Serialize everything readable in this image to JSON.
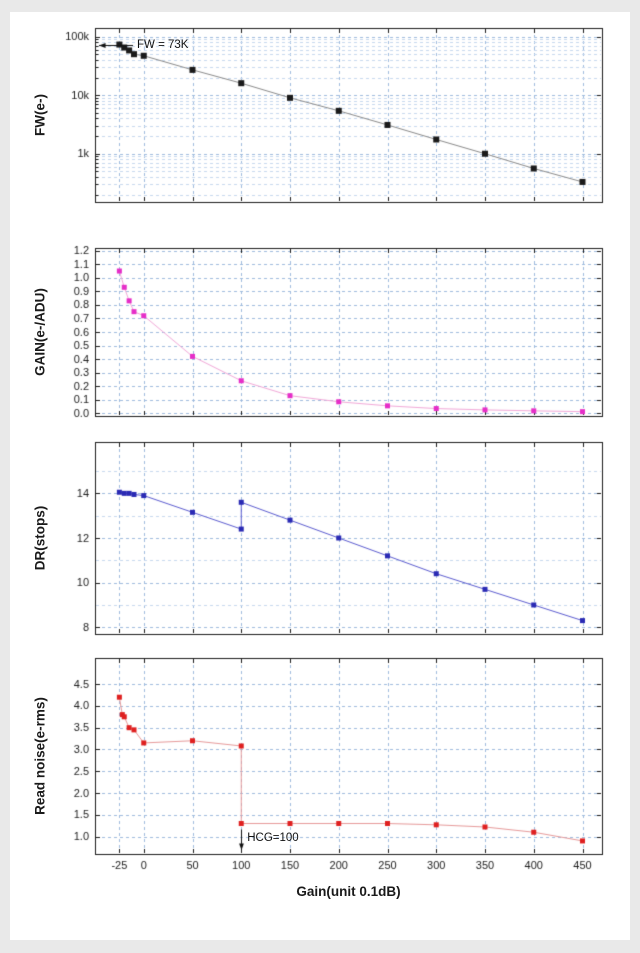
{
  "figure": {
    "background": "#ffffff",
    "page_background": "#e9e9e9",
    "frame_color": "#1c1c1c",
    "grid_major_color": "#9fbcde",
    "grid_minor_color": "#c8d9ee",
    "x_title": "Gain(unit 0.1dB)",
    "xlim": [
      -50,
      470
    ],
    "xticks": [
      -25,
      0,
      50,
      100,
      150,
      200,
      250,
      300,
      350,
      400,
      450
    ]
  },
  "chart_data": [
    {
      "type": "line",
      "series_name": "full-well-capacity",
      "ylabel": "FW(e-)",
      "yscale": "log",
      "ylim": [
        150,
        140000
      ],
      "yticks": [
        {
          "v": 1000,
          "label": "1k"
        },
        {
          "v": 10000,
          "label": "10k"
        },
        {
          "v": 100000,
          "label": "100k"
        }
      ],
      "marker_color": "#1a1a1a",
      "line_color": "#8a8a8a",
      "marker_size": 6,
      "x": [
        -25,
        -20,
        -15,
        -10,
        0,
        50,
        100,
        150,
        200,
        250,
        300,
        350,
        400,
        450
      ],
      "y": [
        73000,
        65000,
        58000,
        50000,
        47000,
        27000,
        16000,
        9000,
        5400,
        3100,
        1750,
        1000,
        560,
        330
      ],
      "annotation": {
        "text": "FW = 73K",
        "direction": "left",
        "x": -25,
        "y": 73000
      }
    },
    {
      "type": "line",
      "series_name": "conversion-gain",
      "ylabel": "GAIN(e-/ADU)",
      "yscale": "linear",
      "ylim": [
        -0.02,
        1.22
      ],
      "yticks": [
        {
          "v": 0.0,
          "label": "0.0"
        },
        {
          "v": 0.1,
          "label": "0.1"
        },
        {
          "v": 0.2,
          "label": "0.2"
        },
        {
          "v": 0.3,
          "label": "0.3"
        },
        {
          "v": 0.4,
          "label": "0.4"
        },
        {
          "v": 0.5,
          "label": "0.5"
        },
        {
          "v": 0.6,
          "label": "0.6"
        },
        {
          "v": 0.7,
          "label": "0.7"
        },
        {
          "v": 0.8,
          "label": "0.8"
        },
        {
          "v": 0.9,
          "label": "0.9"
        },
        {
          "v": 1.0,
          "label": "1.0"
        },
        {
          "v": 1.1,
          "label": "1.1"
        },
        {
          "v": 1.2,
          "label": "1.2"
        }
      ],
      "marker_color": "#e62ec8",
      "line_color": "#f2a8d8",
      "marker_size": 5,
      "x": [
        -25,
        -20,
        -15,
        -10,
        0,
        50,
        100,
        150,
        200,
        250,
        300,
        350,
        400,
        450
      ],
      "y": [
        1.05,
        0.93,
        0.83,
        0.75,
        0.72,
        0.42,
        0.24,
        0.13,
        0.085,
        0.055,
        0.035,
        0.025,
        0.018,
        0.012
      ]
    },
    {
      "type": "line",
      "series_name": "dynamic-range",
      "ylabel": "DR(stops)",
      "yscale": "linear",
      "ylim": [
        7.7,
        16.3
      ],
      "yticks": [
        {
          "v": 8,
          "label": "8"
        },
        {
          "v": 10,
          "label": "10"
        },
        {
          "v": 12,
          "label": "12"
        },
        {
          "v": 14,
          "label": "14"
        }
      ],
      "ygrid_minor": [
        9,
        11,
        13,
        15
      ],
      "marker_color": "#2a2ab4",
      "line_color": "#5b5bd0",
      "marker_size": 5,
      "x": [
        -25,
        -20,
        -15,
        -10,
        0,
        50,
        100,
        100,
        150,
        200,
        250,
        300,
        350,
        400,
        450
      ],
      "y": [
        14.05,
        14.0,
        14.0,
        13.95,
        13.9,
        13.15,
        12.4,
        13.6,
        12.8,
        12.0,
        11.2,
        10.4,
        9.7,
        9.0,
        8.3
      ]
    },
    {
      "type": "line",
      "series_name": "read-noise",
      "ylabel": "Read noise(e-rms)",
      "yscale": "linear",
      "ylim": [
        0.6,
        5.1
      ],
      "yticks": [
        {
          "v": 1.0,
          "label": "1.0"
        },
        {
          "v": 1.5,
          "label": "1.5"
        },
        {
          "v": 2.0,
          "label": "2.0"
        },
        {
          "v": 2.5,
          "label": "2.5"
        },
        {
          "v": 3.0,
          "label": "3.0"
        },
        {
          "v": 3.5,
          "label": "3.5"
        },
        {
          "v": 4.0,
          "label": "4.0"
        },
        {
          "v": 4.5,
          "label": "4.5"
        }
      ],
      "marker_color": "#df2020",
      "line_color": "#e79a9a",
      "marker_size": 5,
      "x": [
        -25,
        -22,
        -20,
        -15,
        -10,
        0,
        50,
        100,
        100,
        150,
        200,
        250,
        300,
        350,
        400,
        450
      ],
      "y": [
        4.2,
        3.8,
        3.75,
        3.5,
        3.45,
        3.15,
        3.2,
        3.08,
        1.3,
        1.3,
        1.3,
        1.3,
        1.27,
        1.22,
        1.1,
        0.9
      ],
      "annotation": {
        "text": "HCG=100",
        "direction": "down",
        "x": 100,
        "y": 1.3
      }
    }
  ]
}
